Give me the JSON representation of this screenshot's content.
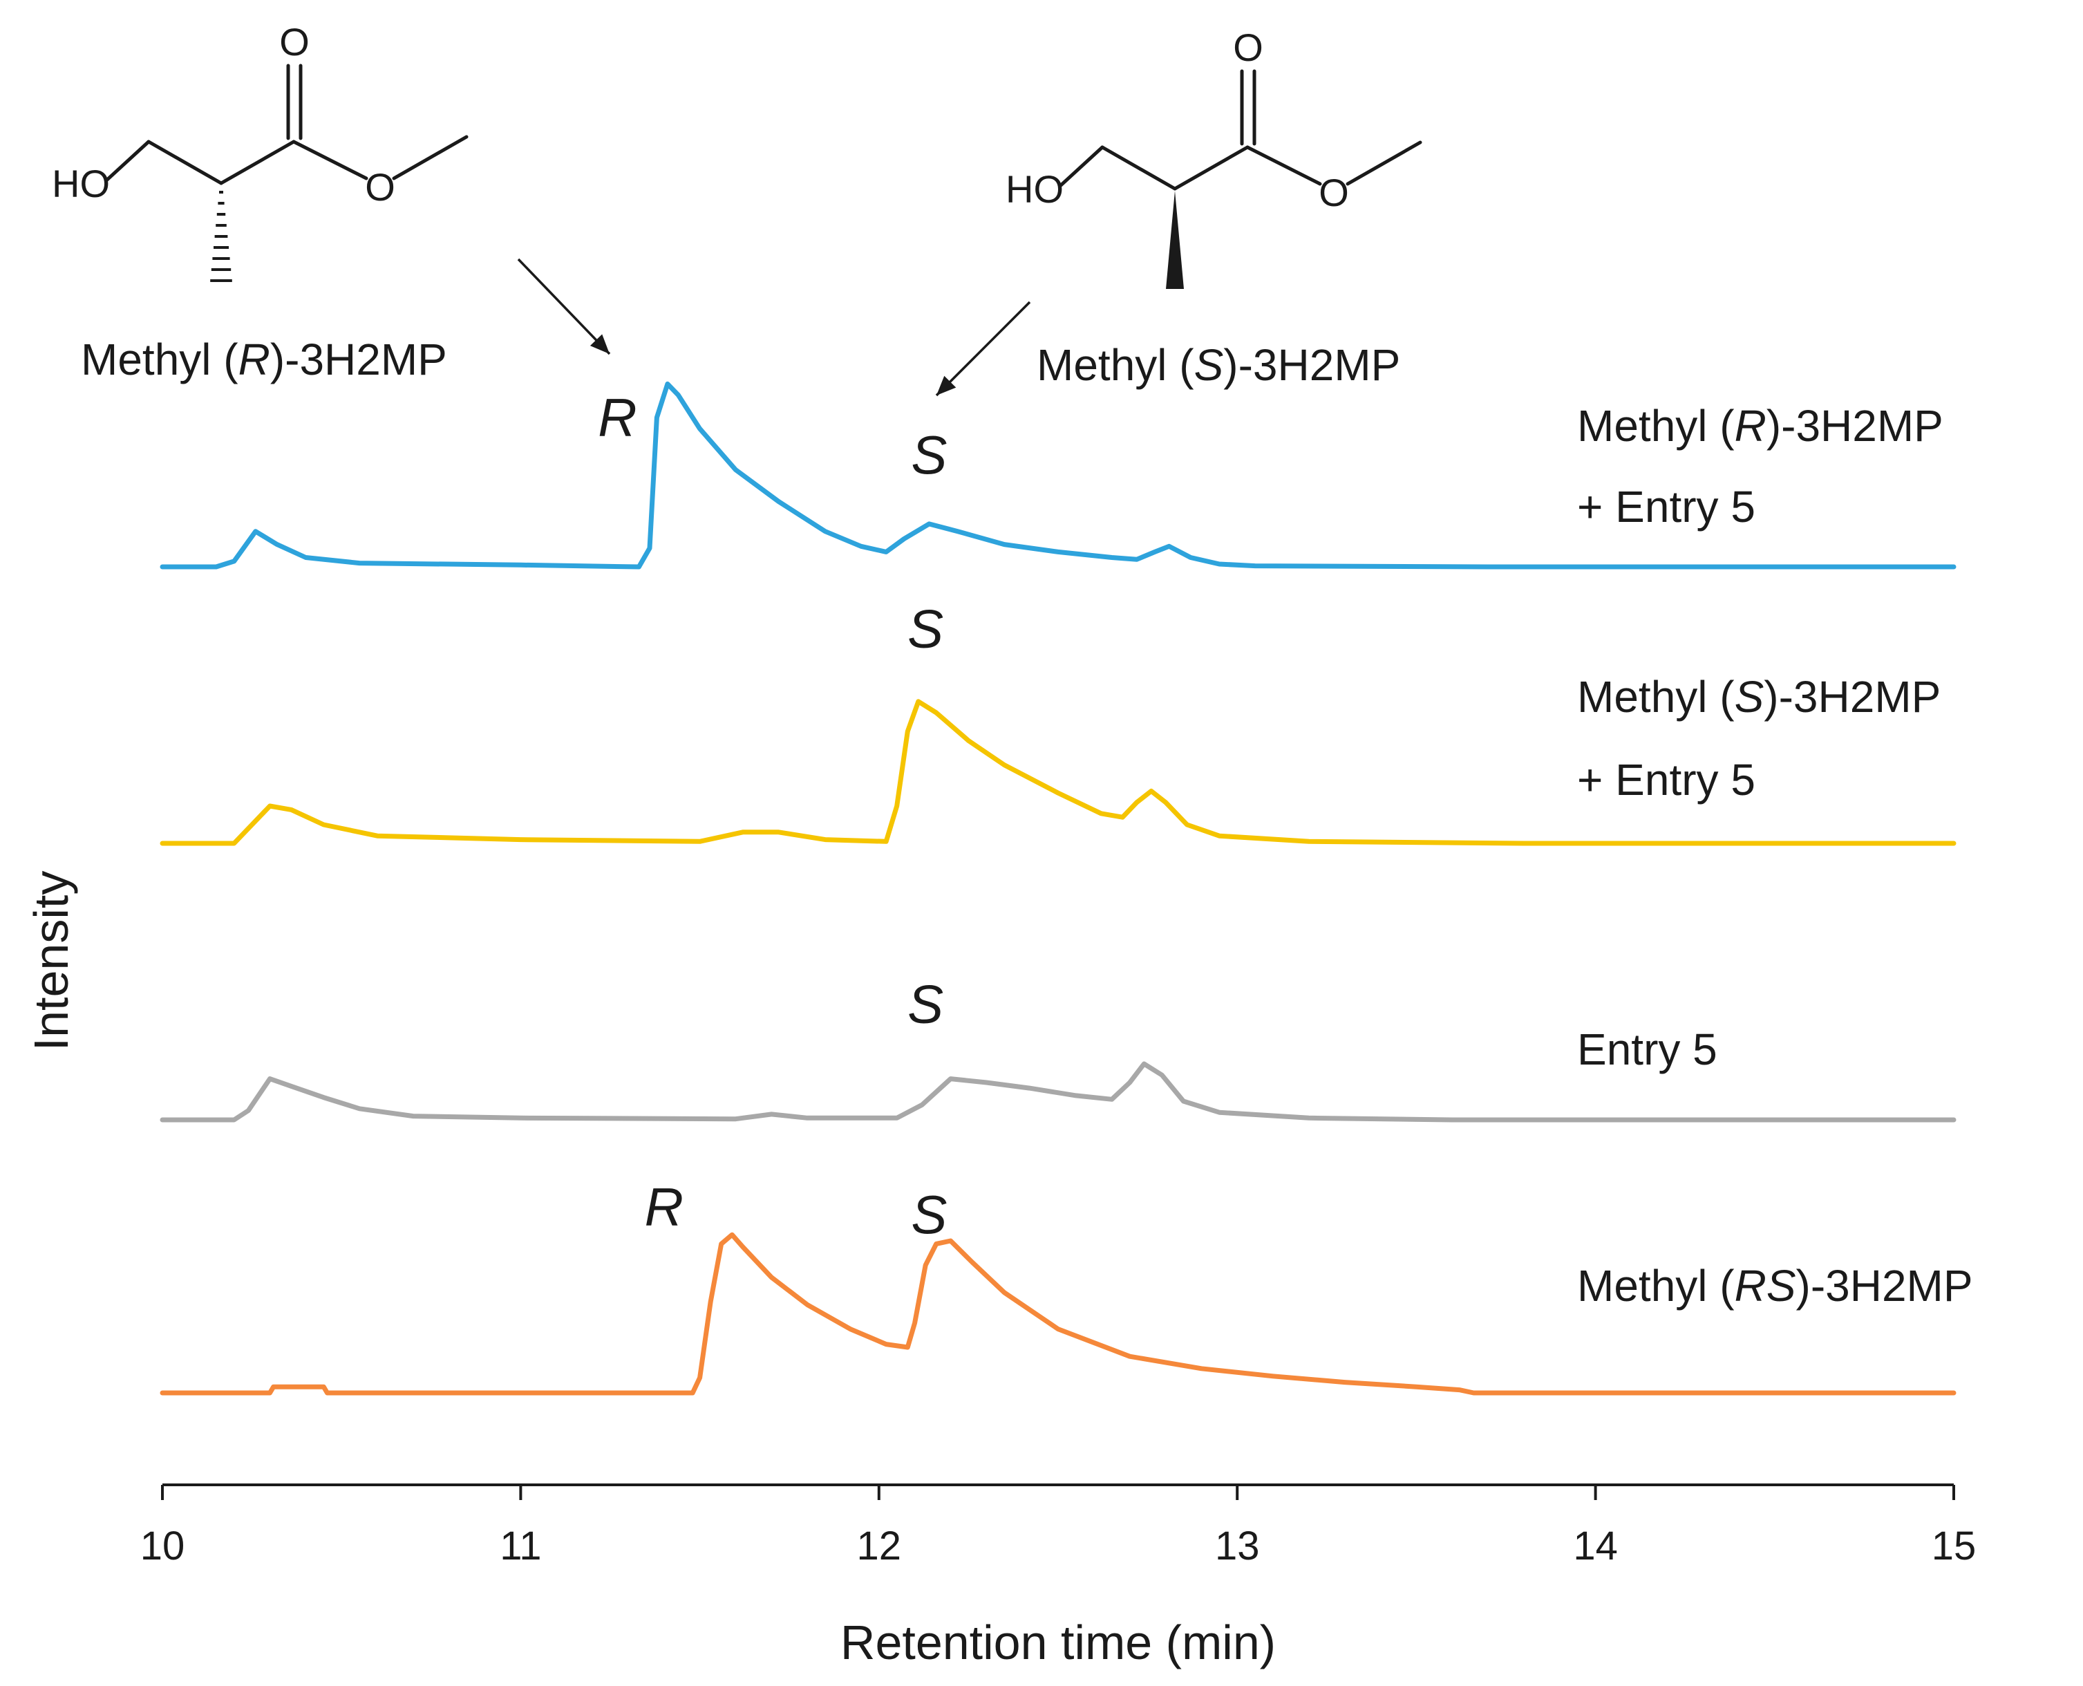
{
  "chart_data": {
    "type": "line",
    "xlabel": "Retention time (min)",
    "ylabel": "Intensity",
    "xlim": [
      10,
      15
    ],
    "xticks": [
      "10",
      "11",
      "12",
      "13",
      "14",
      "15"
    ],
    "y_ticks_shown": false,
    "grid": false,
    "series": [
      {
        "id": "rentry",
        "label_lines": [
          [
            {
              "t": "Methyl (",
              "i": false
            },
            {
              "t": "R",
              "i": true
            },
            {
              "t": ")-3H2MP",
              "i": false
            }
          ],
          [
            {
              "t": "+ Entry 5",
              "i": false
            }
          ]
        ],
        "color": "#2ea3dc",
        "points": [
          [
            10.0,
            0
          ],
          [
            10.15,
            0
          ],
          [
            10.2,
            0.03
          ],
          [
            10.26,
            0.19
          ],
          [
            10.32,
            0.12
          ],
          [
            10.4,
            0.05
          ],
          [
            10.55,
            0.02
          ],
          [
            11.0,
            0.01
          ],
          [
            11.33,
            0
          ],
          [
            11.36,
            0.1
          ],
          [
            11.38,
            0.8
          ],
          [
            11.41,
            0.98
          ],
          [
            11.44,
            0.92
          ],
          [
            11.5,
            0.74
          ],
          [
            11.6,
            0.52
          ],
          [
            11.72,
            0.35
          ],
          [
            11.85,
            0.19
          ],
          [
            11.95,
            0.11
          ],
          [
            12.02,
            0.08
          ],
          [
            12.07,
            0.15
          ],
          [
            12.14,
            0.23
          ],
          [
            12.22,
            0.19
          ],
          [
            12.35,
            0.12
          ],
          [
            12.5,
            0.08
          ],
          [
            12.65,
            0.05
          ],
          [
            12.72,
            0.04
          ],
          [
            12.77,
            0.08
          ],
          [
            12.81,
            0.11
          ],
          [
            12.87,
            0.05
          ],
          [
            12.95,
            0.015
          ],
          [
            13.05,
            0.005
          ],
          [
            13.7,
            0
          ],
          [
            15.0,
            0
          ]
        ],
        "peak_labels": [
          {
            "t": "R",
            "x": 11.27,
            "h": 0.7
          },
          {
            "t": "S",
            "x": 12.14,
            "h": 0.5
          }
        ]
      },
      {
        "id": "sentry",
        "label_lines": [
          [
            {
              "t": "Methyl (",
              "i": false
            },
            {
              "t": "S",
              "i": true
            },
            {
              "t": ")-3H2MP",
              "i": false
            }
          ],
          [
            {
              "t": "+ Entry 5",
              "i": false
            }
          ]
        ],
        "color": "#f5c400",
        "points": [
          [
            10.0,
            0
          ],
          [
            10.2,
            0
          ],
          [
            10.25,
            0.1
          ],
          [
            10.3,
            0.2
          ],
          [
            10.36,
            0.18
          ],
          [
            10.45,
            0.1
          ],
          [
            10.6,
            0.04
          ],
          [
            11.0,
            0.02
          ],
          [
            11.5,
            0.01
          ],
          [
            11.62,
            0.06
          ],
          [
            11.72,
            0.06
          ],
          [
            11.85,
            0.02
          ],
          [
            12.02,
            0.01
          ],
          [
            12.05,
            0.2
          ],
          [
            12.08,
            0.6
          ],
          [
            12.11,
            0.76
          ],
          [
            12.16,
            0.7
          ],
          [
            12.25,
            0.55
          ],
          [
            12.35,
            0.42
          ],
          [
            12.5,
            0.27
          ],
          [
            12.62,
            0.16
          ],
          [
            12.68,
            0.14
          ],
          [
            12.72,
            0.22
          ],
          [
            12.76,
            0.28
          ],
          [
            12.8,
            0.22
          ],
          [
            12.86,
            0.1
          ],
          [
            12.95,
            0.04
          ],
          [
            13.2,
            0.01
          ],
          [
            13.8,
            0
          ],
          [
            15.0,
            0
          ]
        ],
        "peak_labels": [
          {
            "t": "S",
            "x": 12.13,
            "h": 1.05
          }
        ]
      },
      {
        "id": "entry5",
        "label_lines": [
          [
            {
              "t": "Entry 5",
              "i": false
            }
          ]
        ],
        "color": "#a8a8a8",
        "points": [
          [
            10.0,
            0
          ],
          [
            10.2,
            0
          ],
          [
            10.24,
            0.05
          ],
          [
            10.3,
            0.22
          ],
          [
            10.36,
            0.18
          ],
          [
            10.45,
            0.12
          ],
          [
            10.55,
            0.06
          ],
          [
            10.7,
            0.02
          ],
          [
            11.0,
            0.01
          ],
          [
            11.6,
            0.005
          ],
          [
            11.7,
            0.03
          ],
          [
            11.8,
            0.01
          ],
          [
            12.05,
            0.01
          ],
          [
            12.12,
            0.08
          ],
          [
            12.2,
            0.22
          ],
          [
            12.3,
            0.2
          ],
          [
            12.42,
            0.17
          ],
          [
            12.55,
            0.13
          ],
          [
            12.65,
            0.11
          ],
          [
            12.7,
            0.2
          ],
          [
            12.74,
            0.3
          ],
          [
            12.79,
            0.24
          ],
          [
            12.85,
            0.1
          ],
          [
            12.95,
            0.04
          ],
          [
            13.2,
            0.01
          ],
          [
            13.6,
            0
          ],
          [
            15.0,
            0
          ]
        ],
        "peak_labels": [
          {
            "t": "S",
            "x": 12.13,
            "h": 0.52
          }
        ]
      },
      {
        "id": "racemic",
        "label_lines": [
          [
            {
              "t": "Methyl (",
              "i": false
            },
            {
              "t": "RS",
              "i": true
            },
            {
              "t": ")-3H2MP",
              "i": false
            }
          ]
        ],
        "color": "#f5883a",
        "points": [
          [
            10.0,
            0
          ],
          [
            10.3,
            0
          ],
          [
            10.31,
            0.04
          ],
          [
            10.45,
            0.04
          ],
          [
            10.46,
            0
          ],
          [
            11.48,
            0
          ],
          [
            11.5,
            0.1
          ],
          [
            11.53,
            0.6
          ],
          [
            11.56,
            0.98
          ],
          [
            11.59,
            1.04
          ],
          [
            11.62,
            0.96
          ],
          [
            11.7,
            0.76
          ],
          [
            11.8,
            0.58
          ],
          [
            11.92,
            0.42
          ],
          [
            12.02,
            0.32
          ],
          [
            12.08,
            0.3
          ],
          [
            12.1,
            0.46
          ],
          [
            12.13,
            0.84
          ],
          [
            12.16,
            0.98
          ],
          [
            12.2,
            1.0
          ],
          [
            12.26,
            0.86
          ],
          [
            12.35,
            0.66
          ],
          [
            12.5,
            0.42
          ],
          [
            12.7,
            0.24
          ],
          [
            12.9,
            0.16
          ],
          [
            13.1,
            0.11
          ],
          [
            13.3,
            0.07
          ],
          [
            13.5,
            0.04
          ],
          [
            13.62,
            0.02
          ],
          [
            13.66,
            0
          ],
          [
            15.0,
            0
          ]
        ],
        "peak_labels": [
          {
            "t": "R",
            "x": 11.4,
            "h": 1.1
          },
          {
            "t": "S",
            "x": 12.14,
            "h": 1.05
          }
        ]
      }
    ],
    "annotations": {
      "r_structure": {
        "ho": "HO",
        "carbonyl_o": "O",
        "ester_o": "O",
        "name": [
          {
            "t": "Methyl (",
            "i": false
          },
          {
            "t": "R",
            "i": true
          },
          {
            "t": ")-3H2MP",
            "i": false
          }
        ]
      },
      "s_structure": {
        "ho": "HO",
        "carbonyl_o": "O",
        "ester_o": "O",
        "name": [
          {
            "t": "Methyl (",
            "i": false
          },
          {
            "t": "S",
            "i": true
          },
          {
            "t": ")-3H2MP",
            "i": false
          }
        ]
      }
    }
  }
}
